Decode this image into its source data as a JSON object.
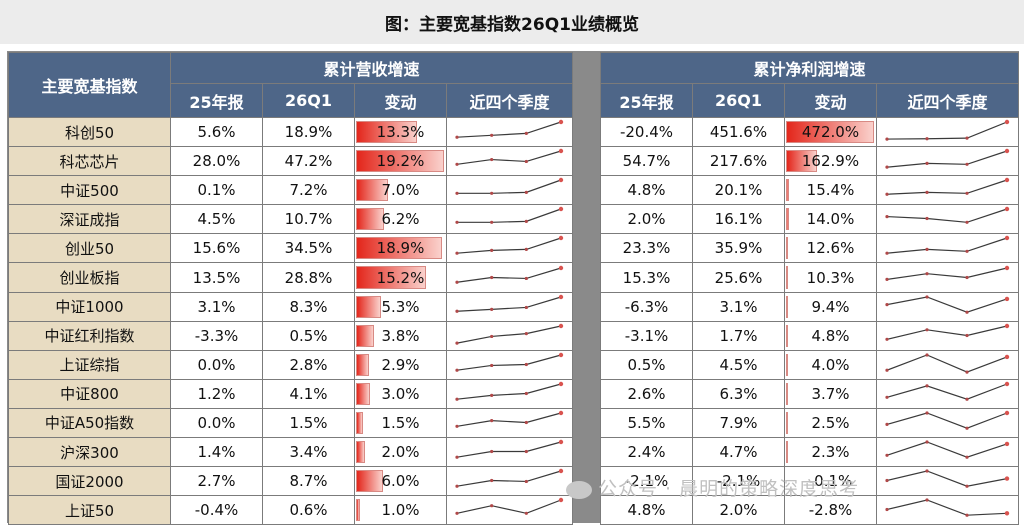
{
  "title": "图：主要宽基指数26Q1业绩概览",
  "header": {
    "index_col": "主要宽基指数",
    "revenue_group": "累计营收增速",
    "profit_group": "累计净利润增速",
    "cols": [
      "25年报",
      "26Q1",
      "变动",
      "近四个季度"
    ]
  },
  "colors": {
    "header_bg": "#4e6688",
    "name_bg": "#e8dcc2",
    "bar_red": "#e3261b",
    "spark": "#3a3a3a",
    "spark_end": "#d9534f"
  },
  "rows": [
    {
      "name": "科创50",
      "rev": {
        "fy25": "5.6%",
        "q1": "18.9%",
        "chg": "13.3%",
        "bar": 0.69,
        "spark": [
          0.2,
          0.3,
          0.4,
          1.0
        ]
      },
      "np": {
        "fy25": "-20.4%",
        "q1": "451.6%",
        "chg": "472.0%",
        "bar": 1.0,
        "spark": [
          0.1,
          0.12,
          0.15,
          1.0
        ]
      }
    },
    {
      "name": "科芯芯片",
      "rev": {
        "fy25": "28.0%",
        "q1": "47.2%",
        "chg": "19.2%",
        "bar": 1.0,
        "spark": [
          0.3,
          0.55,
          0.45,
          1.0
        ]
      },
      "np": {
        "fy25": "54.7%",
        "q1": "217.6%",
        "chg": "162.9%",
        "bar": 0.35,
        "spark": [
          0.15,
          0.35,
          0.3,
          1.0
        ]
      }
    },
    {
      "name": "中证500",
      "rev": {
        "fy25": "0.1%",
        "q1": "7.2%",
        "chg": "7.0%",
        "bar": 0.36,
        "spark": [
          0.3,
          0.3,
          0.35,
          1.0
        ]
      },
      "np": {
        "fy25": "4.8%",
        "q1": "20.1%",
        "chg": "15.4%",
        "bar": 0.033,
        "spark": [
          0.25,
          0.35,
          0.3,
          1.0
        ]
      }
    },
    {
      "name": "深证成指",
      "rev": {
        "fy25": "4.5%",
        "q1": "10.7%",
        "chg": "6.2%",
        "bar": 0.32,
        "spark": [
          0.3,
          0.3,
          0.35,
          1.0
        ]
      },
      "np": {
        "fy25": "2.0%",
        "q1": "16.1%",
        "chg": "14.0%",
        "bar": 0.03,
        "spark": [
          0.6,
          0.5,
          0.3,
          1.0
        ]
      }
    },
    {
      "name": "创业50",
      "rev": {
        "fy25": "15.6%",
        "q1": "34.5%",
        "chg": "18.9%",
        "bar": 0.98,
        "spark": [
          0.2,
          0.35,
          0.4,
          1.0
        ]
      },
      "np": {
        "fy25": "23.3%",
        "q1": "35.9%",
        "chg": "12.6%",
        "bar": 0.027,
        "spark": [
          0.2,
          0.4,
          0.3,
          1.0
        ]
      }
    },
    {
      "name": "创业板指",
      "rev": {
        "fy25": "13.5%",
        "q1": "28.8%",
        "chg": "15.2%",
        "bar": 0.79,
        "spark": [
          0.25,
          0.5,
          0.45,
          1.0
        ]
      },
      "np": {
        "fy25": "15.3%",
        "q1": "25.6%",
        "chg": "10.3%",
        "bar": 0.022,
        "spark": [
          0.4,
          0.7,
          0.5,
          1.0
        ]
      }
    },
    {
      "name": "中证1000",
      "rev": {
        "fy25": "3.1%",
        "q1": "8.3%",
        "chg": "5.3%",
        "bar": 0.28,
        "spark": [
          0.25,
          0.35,
          0.45,
          1.0
        ]
      },
      "np": {
        "fy25": "-6.3%",
        "q1": "3.1%",
        "chg": "9.4%",
        "bar": 0.02,
        "spark": [
          0.6,
          1.0,
          0.2,
          0.9
        ]
      }
    },
    {
      "name": "中证红利指数",
      "rev": {
        "fy25": "-3.3%",
        "q1": "0.5%",
        "chg": "3.8%",
        "bar": 0.2,
        "spark": [
          0.1,
          0.45,
          0.6,
          1.0
        ]
      },
      "np": {
        "fy25": "-3.1%",
        "q1": "1.7%",
        "chg": "4.8%",
        "bar": 0.01,
        "spark": [
          0.3,
          0.8,
          0.5,
          1.0
        ]
      }
    },
    {
      "name": "上证综指",
      "rev": {
        "fy25": "0.0%",
        "q1": "2.8%",
        "chg": "2.9%",
        "bar": 0.15,
        "spark": [
          0.2,
          0.45,
          0.5,
          1.0
        ]
      },
      "np": {
        "fy25": "0.5%",
        "q1": "4.5%",
        "chg": "4.0%",
        "bar": 0.009,
        "spark": [
          0.2,
          1.0,
          0.1,
          0.9
        ]
      }
    },
    {
      "name": "中证800",
      "rev": {
        "fy25": "1.2%",
        "q1": "4.1%",
        "chg": "3.0%",
        "bar": 0.16,
        "spark": [
          0.2,
          0.4,
          0.5,
          1.0
        ]
      },
      "np": {
        "fy25": "2.6%",
        "q1": "6.3%",
        "chg": "3.7%",
        "bar": 0.008,
        "spark": [
          0.3,
          0.9,
          0.2,
          1.0
        ]
      }
    },
    {
      "name": "中证A50指数",
      "rev": {
        "fy25": "0.0%",
        "q1": "1.5%",
        "chg": "1.5%",
        "bar": 0.08,
        "spark": [
          0.3,
          0.6,
          0.5,
          1.0
        ]
      },
      "np": {
        "fy25": "5.5%",
        "q1": "7.9%",
        "chg": "2.5%",
        "bar": 0.005,
        "spark": [
          0.4,
          1.0,
          0.2,
          1.0
        ]
      }
    },
    {
      "name": "沪深300",
      "rev": {
        "fy25": "1.4%",
        "q1": "3.4%",
        "chg": "2.0%",
        "bar": 0.1,
        "spark": [
          0.2,
          0.5,
          0.5,
          1.0
        ]
      },
      "np": {
        "fy25": "2.4%",
        "q1": "4.7%",
        "chg": "2.3%",
        "bar": 0.005,
        "spark": [
          0.3,
          1.0,
          0.2,
          0.9
        ]
      }
    },
    {
      "name": "国证2000",
      "rev": {
        "fy25": "2.7%",
        "q1": "8.7%",
        "chg": "6.0%",
        "bar": 0.31,
        "spark": [
          0.2,
          0.5,
          0.45,
          1.0
        ]
      },
      "np": {
        "fy25": "-2.1%",
        "q1": "-2.1%",
        "chg": "-0.1%",
        "bar": 0.0,
        "spark": [
          0.5,
          1.0,
          0.2,
          0.6
        ]
      }
    },
    {
      "name": "上证50",
      "rev": {
        "fy25": "-0.4%",
        "q1": "0.6%",
        "chg": "1.0%",
        "bar": 0.05,
        "spark": [
          0.3,
          0.7,
          0.3,
          1.0
        ]
      },
      "np": {
        "fy25": "4.8%",
        "q1": "2.0%",
        "chg": "-2.8%",
        "bar": 0.0,
        "spark": [
          0.5,
          1.0,
          0.2,
          0.3
        ]
      }
    }
  ],
  "watermark": "公众号 · 晨明的策略深度思考"
}
